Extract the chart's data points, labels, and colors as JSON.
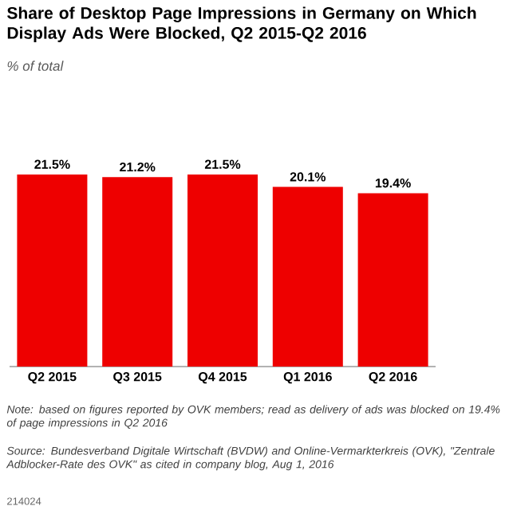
{
  "chart_data": {
    "type": "bar",
    "title": "Share of Desktop Page Impressions in Germany on Which Display Ads Were Blocked, Q2 2015-Q2 2016",
    "subtitle": "% of total",
    "categories": [
      "Q2 2015",
      "Q3 2015",
      "Q4 2015",
      "Q1 2016",
      "Q2 2016"
    ],
    "values": [
      21.5,
      21.2,
      21.5,
      20.1,
      19.4
    ],
    "value_labels": [
      "21.5%",
      "21.2%",
      "21.5%",
      "20.1%",
      "19.4%"
    ],
    "color": "#ee0000",
    "annotations": [
      "Note: based on figures reported by OVK members; read as delivery of ads was blocked on 19.4% of page impressions in Q2 2016",
      "Source: Bundesverband Digitale Wirtschaft (BVDW) and Online-Vermarkterkreis (OVK), \"Zentrale Adblocker-Rate des OVK\" as cited in company blog, Aug 1, 2016",
      "214024"
    ]
  }
}
